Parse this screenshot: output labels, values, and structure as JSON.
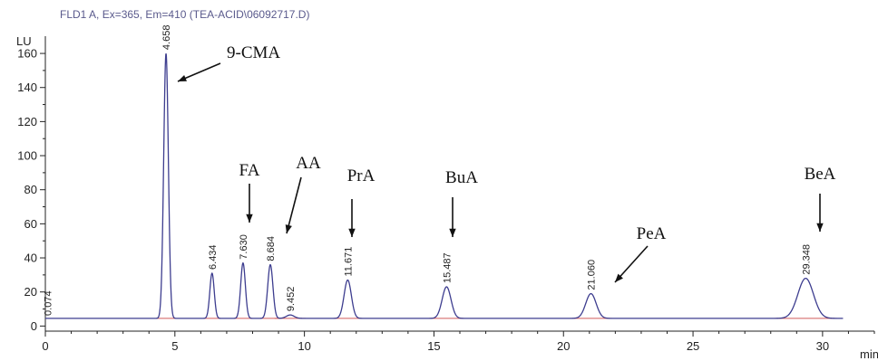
{
  "chart_data": {
    "type": "line",
    "title": "FLD1 A, Ex=365, Em=410 (TEA-ACID\\06092717.D)",
    "ylabel": "LU",
    "xlabel": "min",
    "xlim": [
      0,
      32
    ],
    "ylim": [
      -3,
      168
    ],
    "xticks": [
      0,
      5,
      10,
      15,
      20,
      25,
      30
    ],
    "yticks": [
      0,
      20,
      40,
      60,
      80,
      100,
      120,
      140,
      160
    ],
    "baseline": 4.5,
    "peaks": [
      {
        "rt": 4.658,
        "label": "4.658",
        "height": 160,
        "width": 0.09
      },
      {
        "rt": 6.434,
        "label": "6.434",
        "height": 31,
        "width": 0.085
      },
      {
        "rt": 7.63,
        "label": "7.630",
        "height": 37,
        "width": 0.09
      },
      {
        "rt": 8.684,
        "label": "8.684",
        "height": 36,
        "width": 0.1
      },
      {
        "rt": 9.452,
        "label": "9.452",
        "height": 6.5,
        "width": 0.15
      },
      {
        "rt": 11.671,
        "label": "11.671",
        "height": 27,
        "width": 0.14
      },
      {
        "rt": 15.487,
        "label": "15.487",
        "height": 23,
        "width": 0.17
      },
      {
        "rt": 21.06,
        "label": "21.060",
        "height": 19,
        "width": 0.2
      },
      {
        "rt": 29.348,
        "label": "29.348",
        "height": 28,
        "width": 0.3
      }
    ],
    "extra_labels": [
      {
        "x": 0.08,
        "y": 5,
        "label": "0.074"
      }
    ],
    "annotations": [
      {
        "text": "9-CMA",
        "x_rt": 4.658
      },
      {
        "text": "FA",
        "x_rt": 7.63
      },
      {
        "text": "AA",
        "x_rt": 8.684
      },
      {
        "text": "PrA",
        "x_rt": 11.671
      },
      {
        "text": "BuA",
        "x_rt": 15.487
      },
      {
        "text": "PeA",
        "x_rt": 21.06
      },
      {
        "text": "BeA",
        "x_rt": 29.348
      }
    ],
    "colors": {
      "trace": "#3d3d8f",
      "baseline": "#d05a5a",
      "axis": "#222222"
    }
  }
}
